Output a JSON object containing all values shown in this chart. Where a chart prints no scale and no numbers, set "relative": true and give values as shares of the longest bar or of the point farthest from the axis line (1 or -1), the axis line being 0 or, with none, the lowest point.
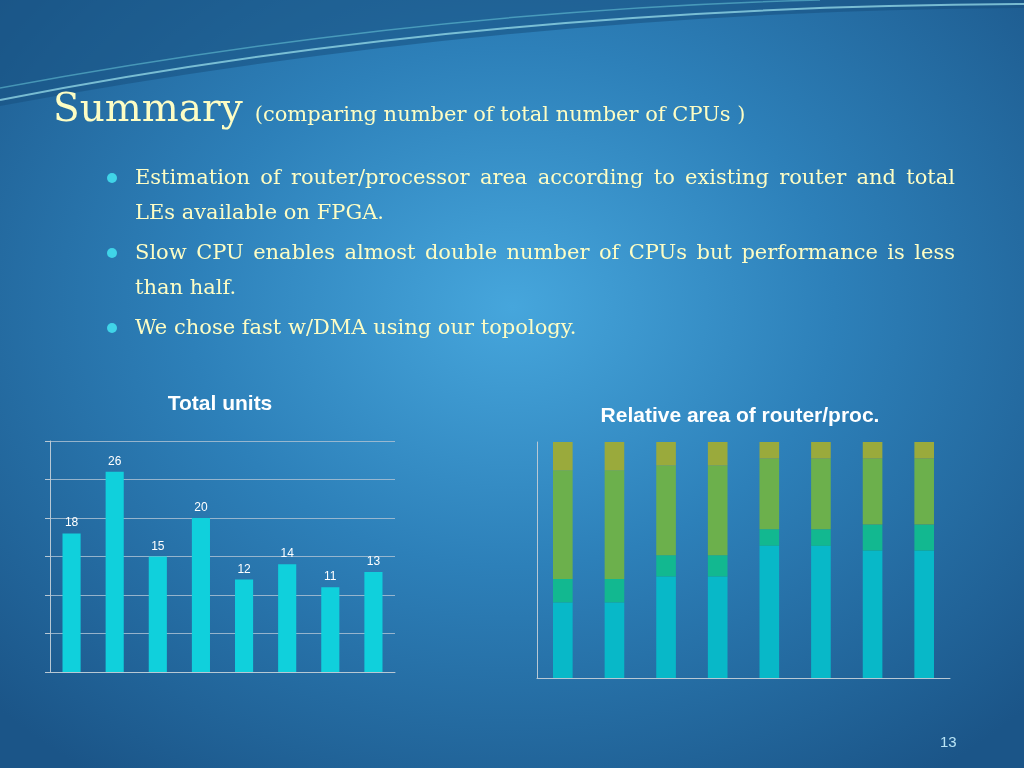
{
  "chart_data": [
    {
      "type": "other",
      "title": "Summary",
      "subtitle": "(comparing number of total number of CPUs )",
      "annotations": [
        "Estimation of router/processor area according to existing router and total LEs available on FPGA.",
        "Slow CPU enables almost double number of CPUs but performance is less than half.",
        "We chose fast w/DMA using our topology.",
        "13"
      ]
    },
    {
      "type": "bar",
      "title": "Total units",
      "categories": [
        null,
        null,
        null,
        null,
        null,
        null,
        null,
        null
      ],
      "values": [
        18,
        26,
        15,
        20,
        12,
        14,
        11,
        13
      ],
      "color": "#10d0dc",
      "ylim": [
        0,
        30
      ],
      "yticks": [
        {
          "value": 0,
          "label": null
        },
        {
          "value": 5,
          "label": null
        },
        {
          "value": 10,
          "label": null
        },
        {
          "value": 15,
          "label": null
        },
        {
          "value": 20,
          "label": null
        },
        {
          "value": 25,
          "label": null
        },
        {
          "value": 30,
          "label": null
        }
      ],
      "grid": "y",
      "data_labels": true
    },
    {
      "type": "bar",
      "title": "Relative area of router/proc.",
      "categories": [
        null,
        null,
        null,
        null,
        null,
        null,
        null,
        null
      ],
      "stacked": true,
      "relative": true,
      "series": [
        {
          "color": "#08b8c8",
          "values": [
            0.32,
            0.32,
            0.43,
            0.43,
            0.56,
            0.56,
            0.54,
            0.54
          ]
        },
        {
          "color": "#12b890",
          "values": [
            0.1,
            0.1,
            0.09,
            0.09,
            0.07,
            0.07,
            0.11,
            0.11
          ]
        },
        {
          "color": "#6cb04c",
          "values": [
            0.46,
            0.46,
            0.38,
            0.38,
            0.3,
            0.3,
            0.28,
            0.28
          ]
        },
        {
          "color": "#9aaa3c",
          "values": [
            0.12,
            0.12,
            0.1,
            0.1,
            0.07,
            0.07,
            0.07,
            0.07
          ]
        }
      ]
    }
  ]
}
